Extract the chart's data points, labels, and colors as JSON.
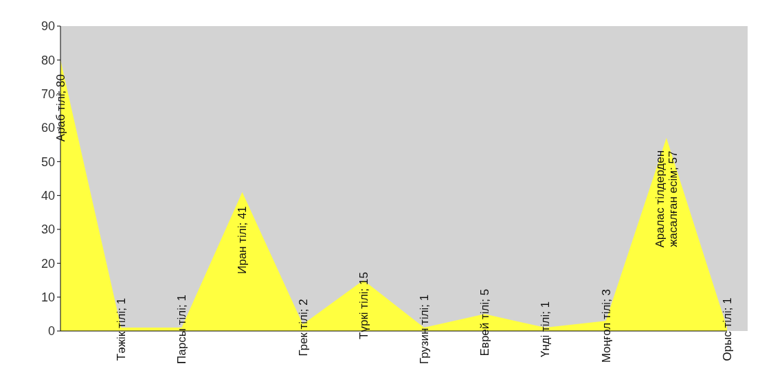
{
  "chart_data": {
    "type": "area",
    "categories": [
      null,
      null,
      null,
      null,
      null,
      null,
      null,
      null,
      null,
      null,
      null,
      null
    ],
    "value_labels": [
      "Араб тілі; 80",
      "Тәжік тілі; 1",
      "Парсы тілі; 1",
      "Иран тілі; 41",
      "Грек тілі; 2",
      "Түркі тілі; 15",
      "Грузин тілі; 1",
      "Еврей тілі; 5",
      "Үнді тілі; 1",
      "Моңғол тілі; 3",
      "Аралас тілдерден жасалған есім; 57",
      "Орыс тілі; 1"
    ],
    "values": [
      80,
      1,
      1,
      41,
      2,
      15,
      1,
      5,
      1,
      3,
      57,
      1
    ],
    "color": "#ffff40",
    "ylim": [
      0,
      90
    ],
    "yticks": [
      0,
      10,
      20,
      30,
      40,
      50,
      60,
      70,
      80,
      90
    ],
    "grid": false
  }
}
